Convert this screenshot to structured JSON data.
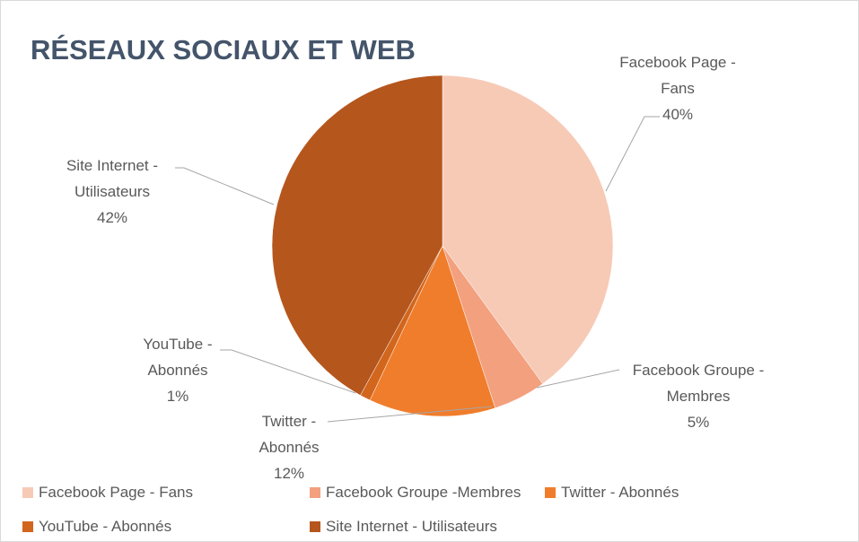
{
  "chart_data": {
    "type": "pie",
    "title": "RÉSEAUX SOCIAUX ET WEB",
    "categories": [
      "Facebook Page - Fans",
      "Facebook Groupe -Membres",
      "Twitter - Abonnés",
      "YouTube - Abonnés",
      "Site Internet - Utilisateurs"
    ],
    "values": [
      40,
      5,
      12,
      1,
      42
    ],
    "value_labels": [
      "40%",
      "5%",
      "12%",
      "1%",
      "42%"
    ],
    "colors": [
      "#f7cab6",
      "#f3a07f",
      "#f07d2c",
      "#d2661c",
      "#b5561d"
    ],
    "legend": "bottom"
  }
}
